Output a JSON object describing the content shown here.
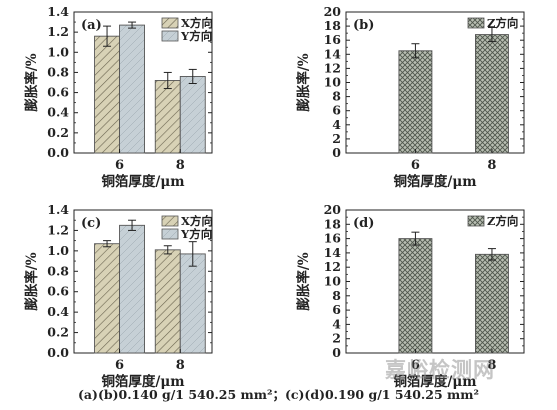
{
  "caption": "(a)(b)0.140 g/1 540.25 mm²；(c)(d)0.190 g/1 540.25 mm²",
  "watermark": "嘉峪检测网",
  "colors": {
    "x_fill": "#d8d2b6",
    "y_fill": "#c6d0d6",
    "z_fill": "#9aa197",
    "axis": "#222222"
  },
  "chart_data": [
    {
      "type": "bar",
      "panel_label": "(a)",
      "categories": [
        "6",
        "8"
      ],
      "series": [
        {
          "name": "X方向",
          "values": [
            1.16,
            0.72
          ],
          "errors": [
            0.1,
            0.08
          ]
        },
        {
          "name": "Y方向",
          "values": [
            1.27,
            0.76
          ],
          "errors": [
            0.03,
            0.07
          ]
        }
      ],
      "xlabel": "铜箔厚度/μm",
      "ylabel": "膨胀率/%",
      "ylim": [
        0,
        1.4
      ],
      "yticks": [
        "0.0",
        "0.2",
        "0.4",
        "0.6",
        "0.8",
        "1.0",
        "1.2",
        "1.4"
      ],
      "legend": "top-right"
    },
    {
      "type": "bar",
      "panel_label": "(b)",
      "categories": [
        "6",
        "8"
      ],
      "series": [
        {
          "name": "Z方向",
          "values": [
            14.5,
            16.8
          ],
          "errors": [
            1.0,
            1.0
          ]
        }
      ],
      "xlabel": "铜箔厚度/μm",
      "ylabel": "膨胀率/%",
      "ylim": [
        0,
        20
      ],
      "yticks": [
        "0",
        "2",
        "4",
        "6",
        "8",
        "10",
        "12",
        "14",
        "16",
        "18",
        "20"
      ],
      "legend": "top-right"
    },
    {
      "type": "bar",
      "panel_label": "(c)",
      "categories": [
        "6",
        "8"
      ],
      "series": [
        {
          "name": "X方向",
          "values": [
            1.07,
            1.01
          ],
          "errors": [
            0.03,
            0.04
          ]
        },
        {
          "name": "Y方向",
          "values": [
            1.25,
            0.97
          ],
          "errors": [
            0.05,
            0.12
          ]
        }
      ],
      "xlabel": "铜箔厚度/μm",
      "ylabel": "膨胀率/%",
      "ylim": [
        0,
        1.4
      ],
      "yticks": [
        "0.0",
        "0.2",
        "0.4",
        "0.6",
        "0.8",
        "1.0",
        "1.2",
        "1.4"
      ],
      "legend": "top-right"
    },
    {
      "type": "bar",
      "panel_label": "(d)",
      "categories": [
        "6",
        "8"
      ],
      "series": [
        {
          "name": "Z方向",
          "values": [
            16.0,
            13.8
          ],
          "errors": [
            0.9,
            0.8
          ]
        }
      ],
      "xlabel": "铜箔厚度/μm",
      "ylabel": "膨胀率/%",
      "ylim": [
        0,
        20
      ],
      "yticks": [
        "0",
        "2",
        "4",
        "6",
        "8",
        "10",
        "12",
        "14",
        "16",
        "18",
        "20"
      ],
      "legend": "top-right"
    }
  ]
}
